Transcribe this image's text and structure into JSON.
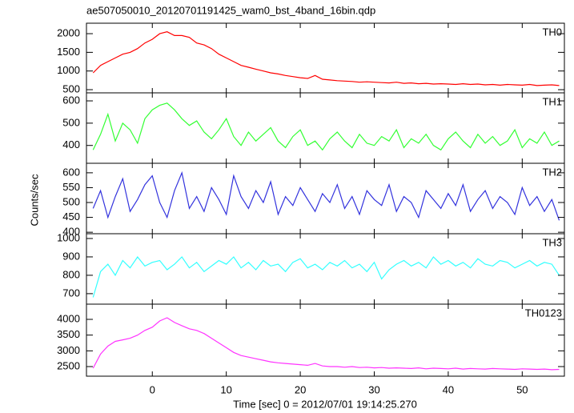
{
  "title": "ae507050010_20120701191425_wam0_bst_4band_16bin.qdp",
  "ylabel": "Counts/sec",
  "xlabel": "Time [sec] 0 = 2012/07/01 19:14:25.270",
  "xlim": [
    -8.9,
    55.7
  ],
  "xticks": [
    0,
    10,
    20,
    30,
    40,
    50
  ],
  "x": [
    -8,
    -7,
    -6,
    -5,
    -4,
    -3,
    -2,
    -1,
    0,
    1,
    2,
    3,
    4,
    5,
    6,
    7,
    8,
    9,
    10,
    11,
    12,
    13,
    14,
    15,
    16,
    17,
    18,
    19,
    20,
    21,
    22,
    23,
    24,
    25,
    26,
    27,
    28,
    29,
    30,
    31,
    32,
    33,
    34,
    35,
    36,
    37,
    38,
    39,
    40,
    41,
    42,
    43,
    44,
    45,
    46,
    47,
    48,
    49,
    50,
    51,
    52,
    53,
    54,
    55
  ],
  "chart_data": [
    {
      "type": "line",
      "name": "TH0",
      "color": "#ff0000",
      "ylim": [
        415,
        2280
      ],
      "yticks": [
        500,
        1000,
        1500,
        2000
      ],
      "values": [
        950,
        1150,
        1250,
        1350,
        1450,
        1500,
        1600,
        1750,
        1850,
        2000,
        2050,
        1950,
        1950,
        1900,
        1750,
        1700,
        1600,
        1450,
        1350,
        1250,
        1150,
        1100,
        1050,
        1000,
        950,
        920,
        880,
        850,
        820,
        800,
        880,
        780,
        760,
        740,
        730,
        720,
        700,
        710,
        700,
        690,
        680,
        700,
        670,
        680,
        660,
        670,
        650,
        660,
        650,
        640,
        660,
        640,
        650,
        630,
        640,
        620,
        640,
        630,
        620,
        640,
        610,
        620,
        630,
        610
      ]
    },
    {
      "type": "line",
      "name": "TH1",
      "color": "#33ff33",
      "ylim": [
        320,
        636
      ],
      "yticks": [
        400,
        500,
        600
      ],
      "values": [
        380,
        450,
        540,
        420,
        500,
        470,
        410,
        520,
        560,
        580,
        590,
        560,
        520,
        490,
        510,
        460,
        430,
        470,
        520,
        440,
        400,
        460,
        420,
        450,
        480,
        420,
        390,
        440,
        470,
        400,
        420,
        380,
        430,
        460,
        420,
        390,
        450,
        410,
        400,
        440,
        420,
        470,
        390,
        430,
        410,
        450,
        400,
        380,
        430,
        460,
        420,
        390,
        450,
        410,
        440,
        400,
        420,
        470,
        390,
        430,
        410,
        460,
        400,
        420
      ]
    },
    {
      "type": "line",
      "name": "TH2",
      "color": "#3333dd",
      "ylim": [
        395,
        632
      ],
      "yticks": [
        400,
        450,
        500,
        550,
        600
      ],
      "values": [
        480,
        540,
        450,
        520,
        580,
        470,
        510,
        560,
        590,
        500,
        450,
        540,
        600,
        480,
        520,
        470,
        550,
        510,
        460,
        590,
        520,
        480,
        540,
        500,
        570,
        460,
        520,
        490,
        550,
        510,
        470,
        530,
        500,
        560,
        480,
        520,
        460,
        540,
        510,
        490,
        560,
        470,
        520,
        500,
        450,
        540,
        510,
        480,
        530,
        490,
        560,
        470,
        510,
        540,
        480,
        520,
        500,
        460,
        550,
        490,
        520,
        470,
        510,
        440
      ]
    },
    {
      "type": "line",
      "name": "TH3",
      "color": "#33ffff",
      "ylim": [
        643,
        1026
      ],
      "yticks": [
        700,
        800,
        900,
        1000
      ],
      "values": [
        680,
        820,
        860,
        800,
        880,
        840,
        900,
        850,
        870,
        880,
        830,
        860,
        900,
        840,
        870,
        820,
        850,
        880,
        860,
        900,
        840,
        870,
        830,
        880,
        850,
        860,
        820,
        870,
        890,
        840,
        860,
        830,
        870,
        850,
        880,
        840,
        860,
        820,
        870,
        780,
        830,
        860,
        880,
        850,
        870,
        840,
        900,
        860,
        880,
        850,
        870,
        840,
        890,
        860,
        850,
        880,
        870,
        840,
        860,
        880,
        850,
        870,
        860,
        800
      ]
    },
    {
      "type": "line",
      "name": "TH0123",
      "color": "#ff33ff",
      "ylim": [
        2195,
        4483
      ],
      "yticks": [
        2500,
        3000,
        3500,
        4000
      ],
      "values": [
        2450,
        2900,
        3150,
        3300,
        3350,
        3400,
        3500,
        3650,
        3750,
        3950,
        4050,
        3900,
        3800,
        3700,
        3650,
        3550,
        3400,
        3250,
        3100,
        2950,
        2850,
        2800,
        2750,
        2700,
        2650,
        2620,
        2600,
        2580,
        2560,
        2540,
        2600,
        2520,
        2500,
        2500,
        2480,
        2500,
        2470,
        2480,
        2460,
        2470,
        2450,
        2460,
        2450,
        2440,
        2460,
        2430,
        2450,
        2440,
        2430,
        2450,
        2420,
        2440,
        2430,
        2420,
        2440,
        2430,
        2420,
        2410,
        2430,
        2420,
        2410,
        2420,
        2400,
        2410
      ]
    }
  ]
}
